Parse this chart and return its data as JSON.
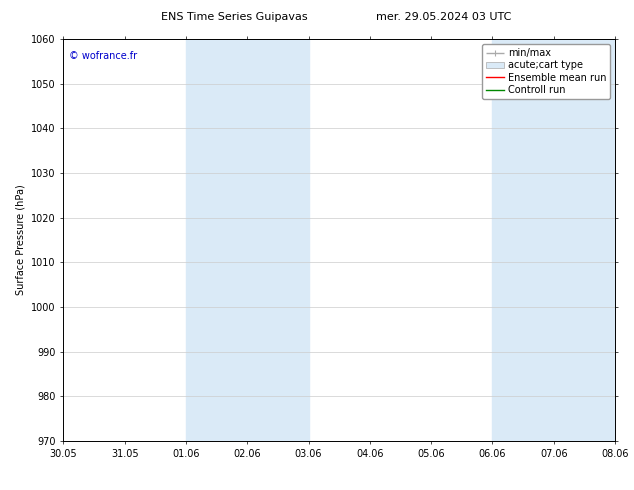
{
  "title": "ENS Time Series Guipavas",
  "title2": "mer. 29.05.2024 03 UTC",
  "ylabel": "Surface Pressure (hPa)",
  "ylim": [
    970,
    1060
  ],
  "yticks": [
    970,
    980,
    990,
    1000,
    1010,
    1020,
    1030,
    1040,
    1050,
    1060
  ],
  "xtick_labels": [
    "30.05",
    "31.05",
    "01.06",
    "02.06",
    "03.06",
    "04.06",
    "05.06",
    "06.06",
    "07.06",
    "08.06"
  ],
  "xtick_positions": [
    0,
    1,
    2,
    3,
    4,
    5,
    6,
    7,
    8,
    9
  ],
  "shaded_regions": [
    {
      "xmin": 2,
      "xmax": 4,
      "color": "#daeaf7"
    },
    {
      "xmin": 7,
      "xmax": 9,
      "color": "#daeaf7"
    }
  ],
  "watermark": "© wofrance.fr",
  "watermark_color": "#0000cc",
  "legend_items": [
    {
      "label": "min/max",
      "color": "#aaaaaa"
    },
    {
      "label": "acute;cart type",
      "color": "#daeaf7"
    },
    {
      "label": "Ensemble mean run",
      "color": "#ff0000"
    },
    {
      "label": "Controll run",
      "color": "#008800"
    }
  ],
  "bg_color": "#ffffff",
  "grid_color": "#cccccc",
  "font_size": 7,
  "title_font_size": 8
}
